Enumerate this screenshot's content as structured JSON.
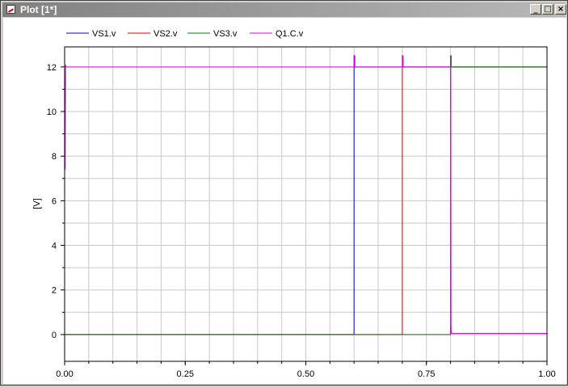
{
  "window": {
    "title": "Plot [1*]",
    "minimize_glyph": "_",
    "maximize_glyph": "□",
    "close_glyph": "×"
  },
  "chart_data": {
    "type": "line",
    "title": "",
    "xlabel": "",
    "ylabel": "[V]",
    "xlim": [
      0.0,
      1.0
    ],
    "ylim": [
      -1.2,
      12.9
    ],
    "x_ticks": [
      "0.00",
      "0.25",
      "0.50",
      "0.75",
      "1.00"
    ],
    "y_ticks": [
      "0",
      "2",
      "4",
      "6",
      "8",
      "10",
      "12"
    ],
    "grid": true,
    "legend_position": "top-left",
    "series": [
      {
        "name": "VS1.v",
        "color": "#0000cc",
        "x": [
          0,
          0.6,
          0.6,
          0.6015,
          0.6015,
          1.0
        ],
        "y": [
          0,
          0,
          12.5,
          12.5,
          12,
          12
        ]
      },
      {
        "name": "VS2.v",
        "color": "#e00000",
        "x": [
          0,
          0.7,
          0.7,
          0.7015,
          0.7015,
          1.0
        ],
        "y": [
          0,
          0,
          12.5,
          12.5,
          12,
          12
        ]
      },
      {
        "name": "VS3.v",
        "color": "#008000",
        "x": [
          0,
          0.8,
          0.8,
          0.8015,
          0.8015,
          1.0
        ],
        "y": [
          0,
          0,
          12.5,
          12.5,
          12,
          12
        ]
      },
      {
        "name": "Q1.C.v",
        "color": "#e000e0",
        "x": [
          0,
          0.001,
          0.002,
          0.003,
          0.004,
          0.6,
          0.6005,
          0.601,
          0.6015,
          0.602,
          0.7,
          0.7005,
          0.701,
          0.7015,
          0.702,
          0.8,
          0.8005,
          0.801,
          0.8015,
          0.802,
          1.0
        ],
        "y": [
          12,
          7.4,
          12.1,
          12,
          12,
          12,
          12.5,
          12,
          12.3,
          12,
          12,
          12.5,
          12,
          12.3,
          12,
          12,
          12.5,
          0.4,
          0.05,
          0.05,
          0.05
        ]
      }
    ]
  }
}
